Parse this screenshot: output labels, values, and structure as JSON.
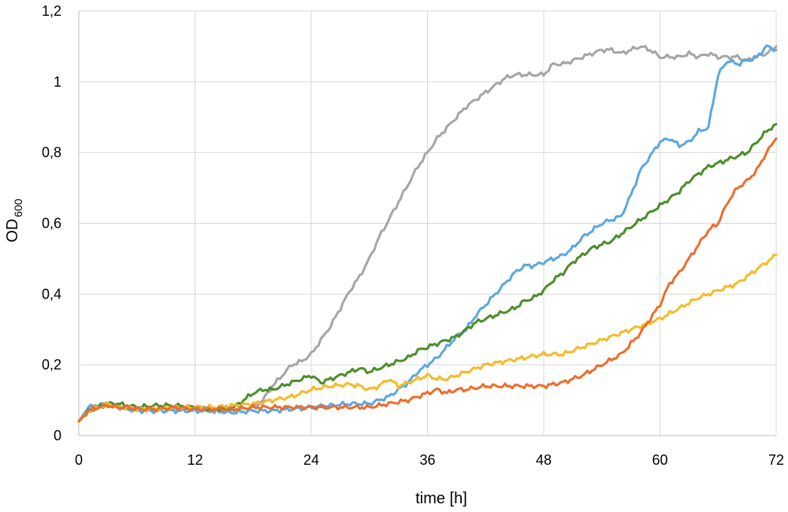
{
  "chart_data": {
    "type": "line",
    "xlabel": "time [h]",
    "ylabel": "OD",
    "ylabel_subscript": "600",
    "xlim": [
      0,
      72
    ],
    "ylim": [
      0,
      1.2
    ],
    "x_ticks": [
      0,
      12,
      24,
      36,
      48,
      60,
      72
    ],
    "x_tick_labels": [
      "0",
      "12",
      "24",
      "36",
      "48",
      "60",
      "72"
    ],
    "y_ticks": [
      0,
      0.2,
      0.4,
      0.6,
      0.8,
      1.0,
      1.2
    ],
    "y_tick_labels": [
      "0",
      "0,2",
      "0,4",
      "0,6",
      "0,8",
      "1",
      "1,2"
    ],
    "grid": true,
    "legend": "none",
    "series": [
      {
        "color": "#a5a5a5",
        "x": [
          0,
          1,
          2,
          3,
          4,
          5,
          6,
          8,
          10,
          12,
          14,
          16,
          18,
          19,
          20,
          21,
          22,
          23,
          24,
          25,
          26,
          27,
          28,
          29,
          30,
          31,
          32,
          33,
          34,
          35,
          36,
          37,
          38,
          39,
          40,
          41,
          42,
          43,
          44,
          45,
          46,
          47,
          48,
          49,
          50,
          51,
          52,
          53,
          54,
          55,
          56,
          57,
          58,
          59,
          60,
          61,
          62,
          63,
          64,
          65,
          66,
          67,
          68,
          69,
          70,
          71,
          72
        ],
        "y": [
          0.04,
          0.08,
          0.085,
          0.09,
          0.085,
          0.08,
          0.075,
          0.075,
          0.075,
          0.075,
          0.07,
          0.07,
          0.08,
          0.1,
          0.14,
          0.17,
          0.2,
          0.21,
          0.23,
          0.27,
          0.31,
          0.36,
          0.41,
          0.45,
          0.5,
          0.56,
          0.61,
          0.66,
          0.71,
          0.76,
          0.8,
          0.84,
          0.87,
          0.9,
          0.93,
          0.95,
          0.97,
          0.99,
          1.01,
          1.02,
          1.02,
          1.02,
          1.02,
          1.05,
          1.05,
          1.06,
          1.07,
          1.08,
          1.09,
          1.09,
          1.08,
          1.09,
          1.1,
          1.09,
          1.07,
          1.07,
          1.07,
          1.08,
          1.07,
          1.08,
          1.07,
          1.07,
          1.07,
          1.06,
          1.07,
          1.08,
          1.1
        ]
      },
      {
        "color": "#5ba7e0",
        "x": [
          0,
          1,
          2,
          3,
          4,
          5,
          6,
          8,
          10,
          12,
          14,
          16,
          18,
          20,
          22,
          24,
          26,
          28,
          30,
          31,
          32,
          33,
          34,
          35,
          36,
          37,
          38,
          39,
          40,
          41,
          42,
          43,
          44,
          45,
          46,
          47,
          48,
          49,
          50,
          51,
          52,
          53,
          54,
          55,
          56,
          57,
          58,
          59,
          60,
          61,
          62,
          63,
          64,
          65,
          66,
          67,
          68,
          69,
          70,
          71,
          72
        ],
        "y": [
          0.04,
          0.08,
          0.085,
          0.09,
          0.08,
          0.075,
          0.07,
          0.07,
          0.07,
          0.07,
          0.07,
          0.065,
          0.07,
          0.07,
          0.075,
          0.08,
          0.085,
          0.09,
          0.09,
          0.1,
          0.11,
          0.13,
          0.15,
          0.18,
          0.2,
          0.22,
          0.25,
          0.28,
          0.3,
          0.34,
          0.37,
          0.4,
          0.43,
          0.46,
          0.48,
          0.48,
          0.49,
          0.5,
          0.51,
          0.53,
          0.56,
          0.58,
          0.6,
          0.61,
          0.62,
          0.68,
          0.75,
          0.79,
          0.83,
          0.84,
          0.82,
          0.83,
          0.86,
          0.87,
          1.02,
          1.06,
          1.05,
          1.06,
          1.07,
          1.1,
          1.09
        ]
      },
      {
        "color": "#4b8d2a",
        "x": [
          0,
          1,
          2,
          3,
          4,
          5,
          6,
          8,
          10,
          12,
          14,
          16,
          17,
          18,
          19,
          20,
          21,
          22,
          23,
          24,
          25,
          26,
          27,
          28,
          29,
          30,
          31,
          32,
          33,
          34,
          35,
          36,
          37,
          38,
          39,
          40,
          41,
          42,
          43,
          44,
          45,
          46,
          47,
          48,
          49,
          50,
          51,
          52,
          53,
          54,
          55,
          56,
          57,
          58,
          59,
          60,
          61,
          62,
          63,
          64,
          65,
          66,
          67,
          68,
          69,
          70,
          71,
          72
        ],
        "y": [
          0.04,
          0.07,
          0.08,
          0.09,
          0.09,
          0.085,
          0.08,
          0.085,
          0.085,
          0.08,
          0.075,
          0.08,
          0.1,
          0.12,
          0.13,
          0.13,
          0.14,
          0.15,
          0.16,
          0.17,
          0.15,
          0.16,
          0.17,
          0.18,
          0.19,
          0.18,
          0.19,
          0.2,
          0.21,
          0.22,
          0.24,
          0.25,
          0.26,
          0.27,
          0.28,
          0.3,
          0.32,
          0.33,
          0.34,
          0.35,
          0.36,
          0.38,
          0.39,
          0.41,
          0.44,
          0.46,
          0.49,
          0.51,
          0.53,
          0.54,
          0.55,
          0.57,
          0.59,
          0.61,
          0.63,
          0.65,
          0.67,
          0.69,
          0.72,
          0.74,
          0.76,
          0.77,
          0.78,
          0.79,
          0.8,
          0.83,
          0.86,
          0.88
        ]
      },
      {
        "color": "#f5ba2a",
        "x": [
          0,
          1,
          2,
          3,
          4,
          5,
          6,
          8,
          10,
          12,
          14,
          16,
          18,
          20,
          22,
          24,
          26,
          28,
          29,
          30,
          31,
          32,
          33,
          34,
          35,
          36,
          37,
          38,
          40,
          42,
          44,
          46,
          48,
          50,
          52,
          54,
          56,
          58,
          60,
          62,
          64,
          66,
          68,
          70,
          72
        ],
        "y": [
          0.04,
          0.07,
          0.08,
          0.09,
          0.08,
          0.08,
          0.075,
          0.075,
          0.08,
          0.08,
          0.08,
          0.085,
          0.09,
          0.1,
          0.11,
          0.13,
          0.14,
          0.145,
          0.14,
          0.13,
          0.14,
          0.16,
          0.14,
          0.15,
          0.16,
          0.17,
          0.16,
          0.16,
          0.18,
          0.2,
          0.21,
          0.22,
          0.23,
          0.23,
          0.25,
          0.27,
          0.29,
          0.31,
          0.33,
          0.36,
          0.39,
          0.41,
          0.43,
          0.47,
          0.51
        ]
      },
      {
        "color": "#ed6c2b",
        "x": [
          0,
          1,
          2,
          3,
          4,
          5,
          6,
          8,
          10,
          12,
          14,
          16,
          18,
          20,
          22,
          24,
          26,
          28,
          30,
          32,
          34,
          36,
          37,
          38,
          39,
          40,
          42,
          44,
          46,
          48,
          50,
          52,
          54,
          56,
          58,
          59,
          60,
          61,
          62,
          63,
          64,
          65,
          66,
          67,
          68,
          69,
          70,
          71,
          72
        ],
        "y": [
          0.04,
          0.07,
          0.08,
          0.085,
          0.08,
          0.08,
          0.075,
          0.075,
          0.08,
          0.075,
          0.075,
          0.075,
          0.08,
          0.08,
          0.08,
          0.08,
          0.08,
          0.08,
          0.08,
          0.09,
          0.1,
          0.12,
          0.13,
          0.12,
          0.13,
          0.13,
          0.14,
          0.14,
          0.14,
          0.14,
          0.15,
          0.17,
          0.2,
          0.23,
          0.29,
          0.33,
          0.37,
          0.43,
          0.46,
          0.5,
          0.54,
          0.58,
          0.6,
          0.66,
          0.7,
          0.72,
          0.75,
          0.8,
          0.84
        ]
      }
    ]
  }
}
